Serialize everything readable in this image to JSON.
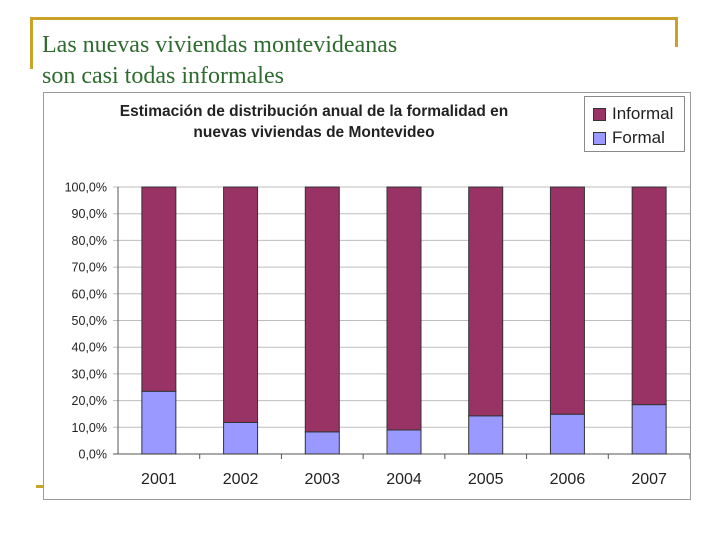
{
  "slide": {
    "title_line1": "Las nuevas viviendas montevideanas",
    "title_line2": "son casi todas informales"
  },
  "chart_data": {
    "type": "bar",
    "stacked": true,
    "title_line1": "Estimación de distribución anual de la formalidad en",
    "title_line2": "nuevas viviendas de Montevideo",
    "categories": [
      "2001",
      "2002",
      "2003",
      "2004",
      "2005",
      "2006",
      "2007"
    ],
    "series": [
      {
        "name": "Formal",
        "color": "#9999ff",
        "values": [
          23.5,
          11.8,
          8.3,
          9.0,
          14.3,
          14.9,
          18.5
        ]
      },
      {
        "name": "Informal",
        "color": "#993366",
        "values": [
          76.5,
          88.2,
          91.7,
          91.0,
          85.7,
          85.1,
          81.5
        ]
      }
    ],
    "legend": [
      "Informal",
      "Formal"
    ],
    "y_ticks": [
      "0,0%",
      "10,0%",
      "20,0%",
      "30,0%",
      "40,0%",
      "50,0%",
      "60,0%",
      "70,0%",
      "80,0%",
      "90,0%",
      "100,0%"
    ],
    "ylim": [
      0,
      100
    ],
    "legend_position": "top-right"
  }
}
